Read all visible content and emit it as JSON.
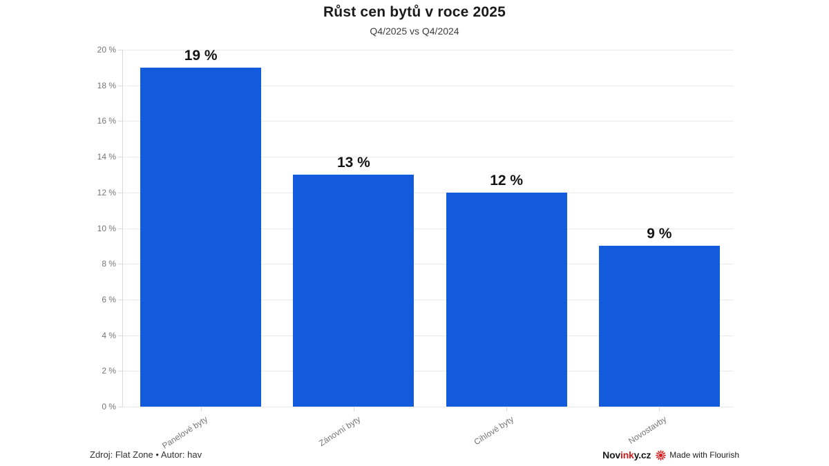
{
  "header": {
    "title": "Růst cen bytů v roce 2025",
    "subtitle": "Q4/2025 vs Q4/2024"
  },
  "chart_data": {
    "type": "bar",
    "title": "Růst cen bytů v roce 2025",
    "subtitle": "Q4/2025 vs Q4/2024",
    "categories": [
      "Panelové byty",
      "Zánovní byty",
      "Cihlové byty",
      "Novostavby"
    ],
    "values": [
      19,
      13,
      12,
      9
    ],
    "value_labels": [
      "19 %",
      "13 %",
      "12 %",
      "9 %"
    ],
    "xlabel": "",
    "ylabel": "",
    "ylim": [
      0,
      20
    ],
    "ytick_step": 2,
    "ytick_suffix": " %",
    "grid": true,
    "legend": "none",
    "bar_color": "#135BDD"
  },
  "footer": {
    "source": "Zdroj: Flat Zone • Autor: hav",
    "brand": {
      "part1": "Nov",
      "part2": "ink",
      "part3": "y.cz"
    },
    "flourish_label": "Made with Flourish",
    "flourish_icon": "starburst"
  },
  "colors": {
    "bar_blue": "#135BDD",
    "brand_red": "#d21c1c",
    "flourish_red": "#e01414",
    "gridline": "#ebebeb",
    "axis_text": "#757575"
  }
}
